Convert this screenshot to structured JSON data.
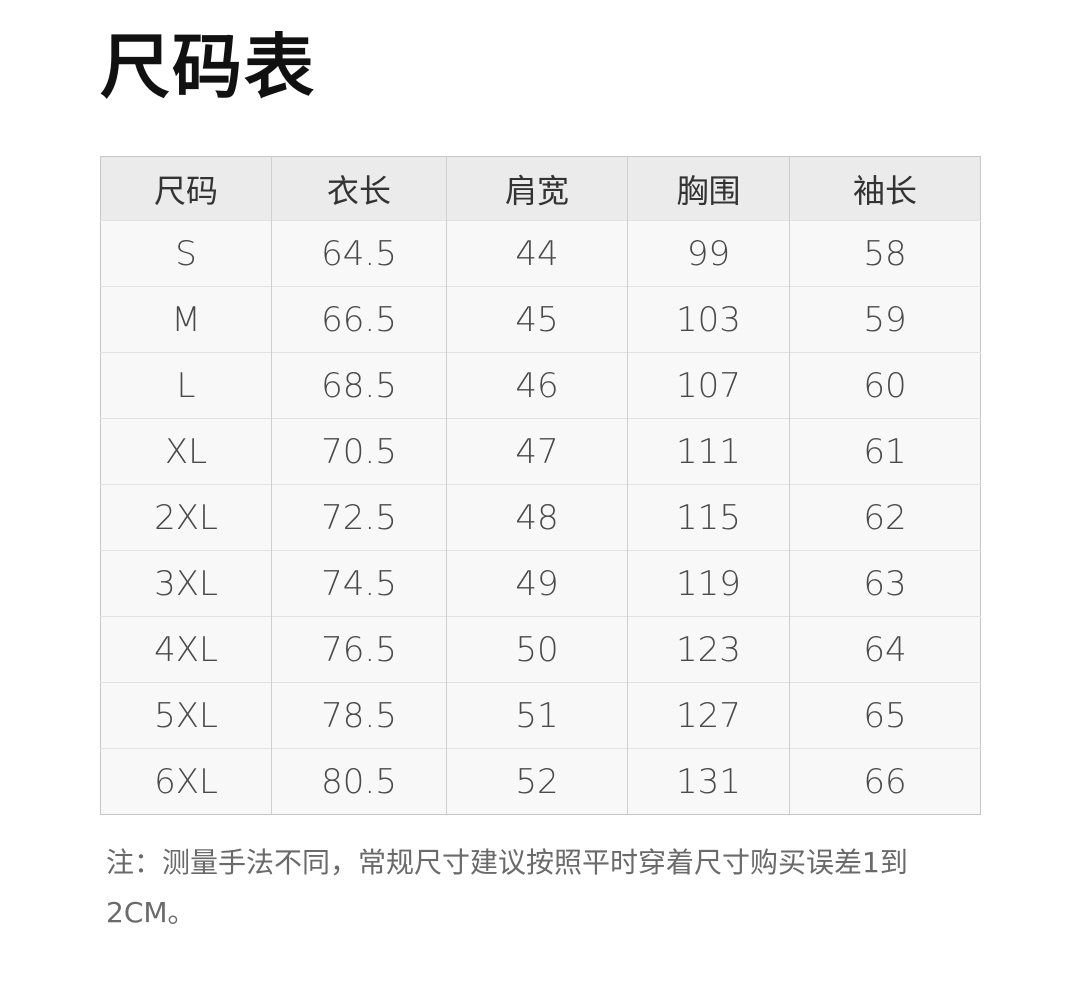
{
  "title": "尺码表",
  "table": {
    "headers": [
      "尺码",
      "衣长",
      "肩宽",
      "胸围",
      "袖长"
    ],
    "rows": [
      [
        "S",
        "64.5",
        "44",
        "99",
        "58"
      ],
      [
        "M",
        "66.5",
        "45",
        "103",
        "59"
      ],
      [
        "L",
        "68.5",
        "46",
        "107",
        "60"
      ],
      [
        "XL",
        "70.5",
        "47",
        "111",
        "61"
      ],
      [
        "2XL",
        "72.5",
        "48",
        "115",
        "62"
      ],
      [
        "3XL",
        "74.5",
        "49",
        "119",
        "63"
      ],
      [
        "4XL",
        "76.5",
        "50",
        "123",
        "64"
      ],
      [
        "5XL",
        "78.5",
        "51",
        "127",
        "65"
      ],
      [
        "6XL",
        "80.5",
        "52",
        "131",
        "66"
      ]
    ]
  },
  "note": "注：测量手法不同，常规尺寸建议按照平时穿着尺寸购买误差1到2CM。"
}
